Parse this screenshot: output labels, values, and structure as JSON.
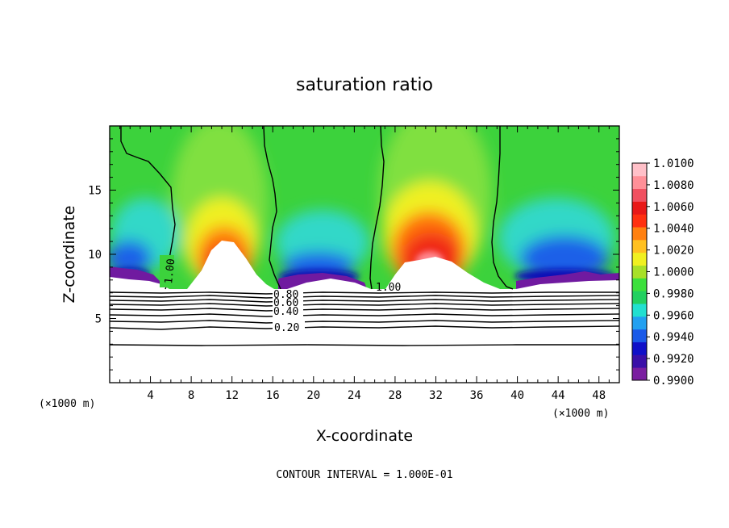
{
  "chart_data": {
    "type": "heatmap",
    "title": "saturation ratio",
    "xlabel": "X-coordinate",
    "ylabel": "Z-coordinate",
    "x_units": "(×1000 m)",
    "x_units_right": "(×1000 m)",
    "xlim": [
      0,
      50
    ],
    "ylim": [
      0,
      20
    ],
    "x_ticks": [
      "4",
      "8",
      "12",
      "16",
      "20",
      "24",
      "28",
      "32",
      "36",
      "40",
      "44",
      "48"
    ],
    "y_ticks": [
      "5",
      "10",
      "15"
    ],
    "colorbar": {
      "labels": [
        "0.9900",
        "0.9920",
        "0.9940",
        "0.9960",
        "0.9980",
        "1.0000",
        "1.0020",
        "1.0040",
        "1.0060",
        "1.0080",
        "1.0100"
      ],
      "colors": [
        "#7a1fa0",
        "#3a10a8",
        "#1010c8",
        "#1a5ae8",
        "#22a0f0",
        "#22e0d0",
        "#22d060",
        "#3ce03c",
        "#a8e028",
        "#f0f020",
        "#ffc020",
        "#ff8010",
        "#ff3010",
        "#e81818",
        "#f05060",
        "#ff9098",
        "#ffc0c8"
      ]
    },
    "contour_labels": [
      "1.00",
      "1.00",
      "0.80",
      "0.60",
      "0.40",
      "0.20"
    ],
    "contour_interval_text": "CONTOUR INTERVAL =  1.000E-01",
    "grid": false
  }
}
